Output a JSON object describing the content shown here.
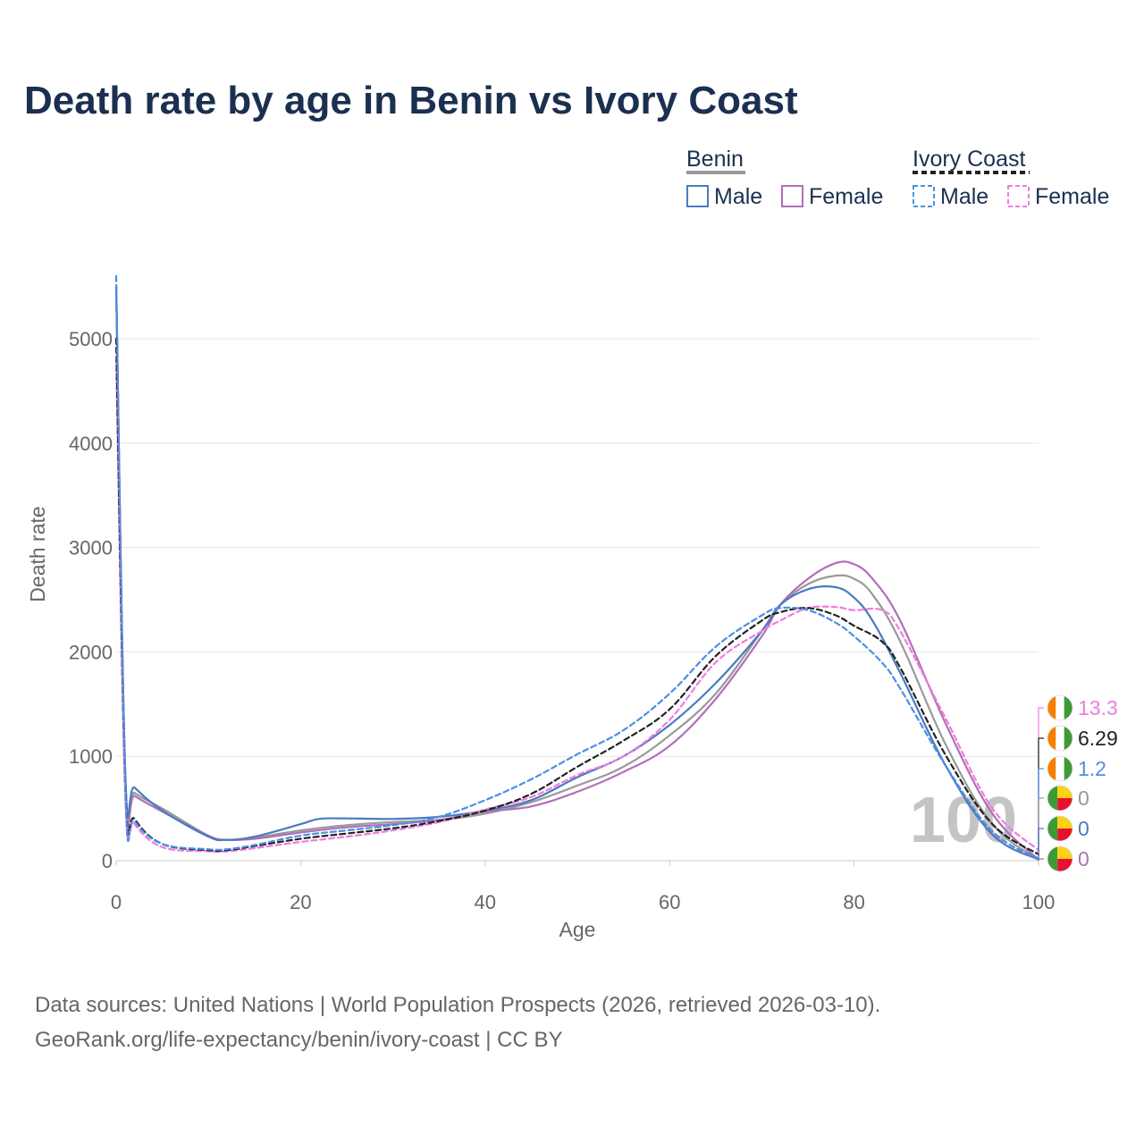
{
  "chart_data": {
    "type": "line",
    "title": "Death rate by age in Benin vs Ivory Coast",
    "xlabel": "Age",
    "ylabel": "Death rate",
    "xlim": [
      0,
      100
    ],
    "ylim": [
      0,
      5600
    ],
    "xticks": [
      0,
      20,
      40,
      60,
      80,
      100
    ],
    "yticks": [
      0,
      1000,
      2000,
      3000,
      4000,
      5000
    ],
    "watermark": "100",
    "legend": {
      "groups": [
        {
          "name": "Benin",
          "entries": [
            "Male",
            "Female"
          ]
        },
        {
          "name": "Ivory Coast",
          "entries": [
            "Male",
            "Female"
          ]
        }
      ]
    },
    "series": [
      {
        "name": "Benin",
        "color": "#999999",
        "dashed": false,
        "x": [
          0,
          1,
          2,
          5,
          10,
          12,
          15,
          20,
          25,
          30,
          35,
          40,
          45,
          50,
          55,
          60,
          65,
          70,
          72,
          75,
          78,
          80,
          82,
          85,
          90,
          95,
          100
        ],
        "y": [
          5500,
          780,
          650,
          500,
          240,
          200,
          220,
          290,
          340,
          370,
          390,
          450,
          560,
          720,
          900,
          1200,
          1600,
          2200,
          2450,
          2650,
          2730,
          2700,
          2550,
          2100,
          1100,
          350,
          10
        ],
        "end_label": "0"
      },
      {
        "name": "Benin Male",
        "color": "#4c7abf",
        "dashed": false,
        "x": [
          0,
          1,
          2,
          5,
          10,
          12,
          15,
          20,
          22,
          25,
          30,
          35,
          40,
          45,
          50,
          55,
          60,
          65,
          70,
          72,
          75,
          78,
          80,
          82,
          85,
          90,
          95,
          100
        ],
        "y": [
          5500,
          820,
          700,
          480,
          230,
          200,
          230,
          350,
          400,
          405,
          400,
          420,
          480,
          580,
          800,
          1000,
          1300,
          1700,
          2200,
          2450,
          2600,
          2620,
          2520,
          2300,
          1800,
          900,
          250,
          10
        ],
        "end_label": "0"
      },
      {
        "name": "Benin Female",
        "color": "#b070b8",
        "dashed": false,
        "x": [
          0,
          1,
          2,
          5,
          10,
          12,
          15,
          20,
          25,
          30,
          35,
          40,
          45,
          50,
          55,
          60,
          65,
          70,
          72,
          75,
          78,
          80,
          82,
          85,
          90,
          95,
          100
        ],
        "y": [
          5500,
          700,
          620,
          470,
          240,
          200,
          210,
          270,
          320,
          350,
          390,
          470,
          520,
          660,
          850,
          1100,
          1550,
          2150,
          2450,
          2700,
          2850,
          2840,
          2700,
          2300,
          1300,
          450,
          10
        ],
        "end_label": "0"
      },
      {
        "name": "Ivory Coast",
        "color": "#222222",
        "dashed": true,
        "x": [
          0,
          1,
          2,
          5,
          10,
          12,
          15,
          20,
          25,
          30,
          35,
          40,
          45,
          50,
          55,
          60,
          65,
          70,
          72,
          75,
          78,
          80,
          83,
          85,
          90,
          95,
          100
        ],
        "y": [
          5000,
          680,
          400,
          160,
          100,
          100,
          140,
          210,
          260,
          310,
          380,
          480,
          640,
          900,
          1150,
          1450,
          1960,
          2300,
          2380,
          2420,
          2350,
          2250,
          2100,
          1850,
          1000,
          350,
          60
        ],
        "end_label": "6.29"
      },
      {
        "name": "Ivory Coast Male",
        "color": "#4a90e2",
        "dashed": true,
        "x": [
          0,
          1,
          2,
          5,
          10,
          12,
          15,
          20,
          25,
          30,
          35,
          40,
          45,
          50,
          55,
          60,
          65,
          70,
          72,
          75,
          78,
          80,
          83,
          85,
          90,
          95,
          100
        ],
        "y": [
          5600,
          670,
          380,
          160,
          110,
          110,
          150,
          240,
          290,
          340,
          420,
          580,
          780,
          1020,
          1250,
          1600,
          2050,
          2350,
          2420,
          2400,
          2280,
          2150,
          1900,
          1650,
          900,
          280,
          20
        ],
        "end_label": "1.2"
      },
      {
        "name": "Ivory Coast Female",
        "color": "#f07ce0",
        "dashed": true,
        "x": [
          0,
          1,
          2,
          5,
          10,
          12,
          15,
          20,
          25,
          30,
          35,
          40,
          45,
          50,
          55,
          60,
          65,
          70,
          72,
          75,
          78,
          80,
          83,
          85,
          90,
          95,
          100
        ],
        "y": [
          4800,
          600,
          350,
          130,
          90,
          90,
          120,
          180,
          230,
          290,
          370,
          490,
          610,
          820,
          1000,
          1350,
          1900,
          2200,
          2300,
          2420,
          2430,
          2400,
          2400,
          2200,
          1350,
          500,
          100
        ],
        "end_label": "13.3"
      }
    ]
  },
  "footer": {
    "line1": "Data sources: United Nations | World Population Prospects (2026, retrieved 2026-03-10).",
    "line2": "GeoRank.org/life-expectancy/benin/ivory-coast | CC BY"
  }
}
